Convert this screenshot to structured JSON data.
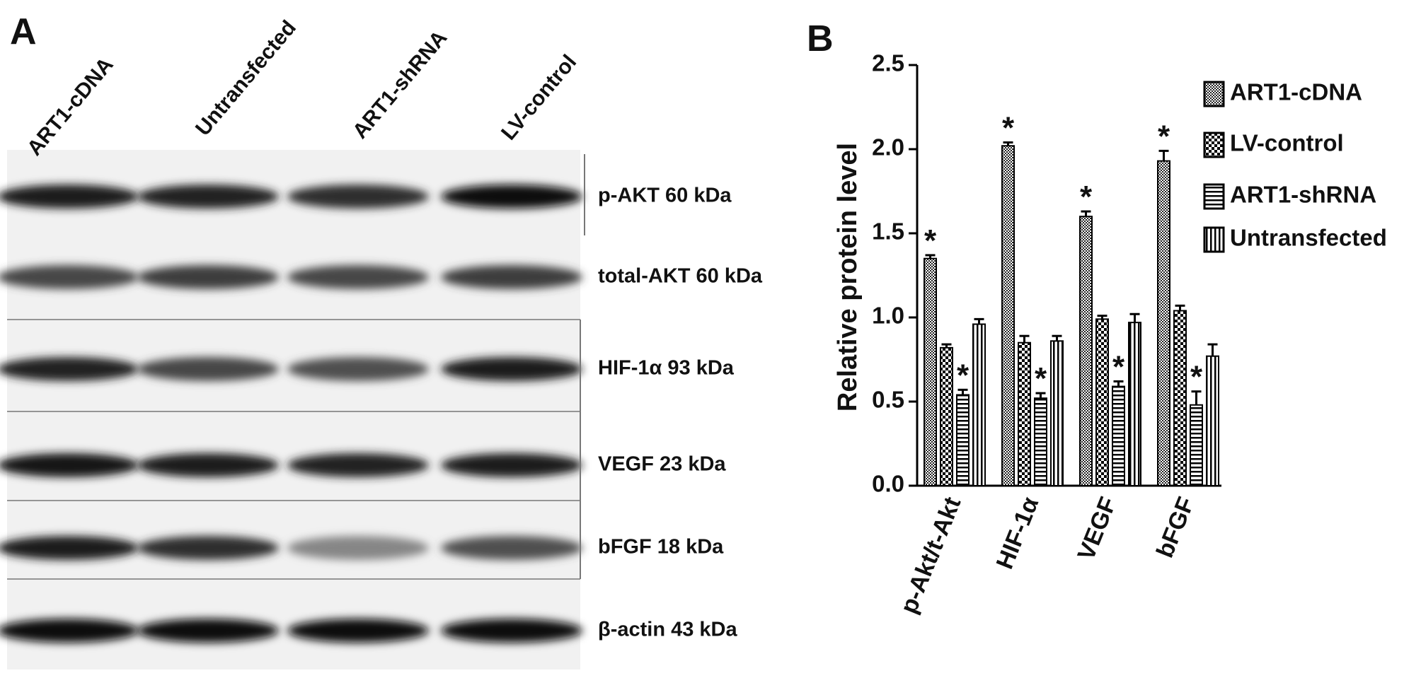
{
  "panel_a": {
    "label": "A",
    "lanes": [
      "ART1-cDNA",
      "Untransfected",
      "ART1-shRNA",
      "LV-control"
    ],
    "bands": [
      "p-AKT 60 kDa",
      "total-AKT 60 kDa",
      "HIF-1α  93 kDa",
      "VEGF 23 kDa",
      "bFGF 18 kDa",
      "β-actin 43 kDa"
    ]
  },
  "chart_data": {
    "type": "bar",
    "panel_label": "B",
    "y_label": "Relative protein level",
    "categories": [
      "p-Akt/t-Akt",
      "HIF-1α",
      "VEGF",
      "bFGF"
    ],
    "series": [
      {
        "name": "ART1-cDNA",
        "color": "#000000",
        "pattern": "fine-checker",
        "values": [
          1.35,
          2.02,
          1.6,
          1.93
        ],
        "errors": [
          0.02,
          0.02,
          0.03,
          0.06
        ]
      },
      {
        "name": "LV-control",
        "color": "#000000",
        "pattern": "checker",
        "values": [
          0.82,
          0.85,
          0.99,
          1.04
        ],
        "errors": [
          0.02,
          0.04,
          0.02,
          0.03
        ]
      },
      {
        "name": "ART1-shRNA",
        "color": "#000000",
        "pattern": "hlines",
        "values": [
          0.54,
          0.52,
          0.59,
          0.48
        ],
        "errors": [
          0.03,
          0.03,
          0.03,
          0.08
        ]
      },
      {
        "name": "Untransfected",
        "color": "#000000",
        "pattern": "vlines",
        "values": [
          0.96,
          0.86,
          0.97,
          0.77
        ],
        "errors": [
          0.03,
          0.03,
          0.05,
          0.07
        ]
      }
    ],
    "annotations": [
      {
        "text": "*",
        "series": 0,
        "category": 0
      },
      {
        "text": "*",
        "series": 2,
        "category": 0
      },
      {
        "text": "*",
        "series": 0,
        "category": 1
      },
      {
        "text": "*",
        "series": 2,
        "category": 1
      },
      {
        "text": "*",
        "series": 0,
        "category": 2
      },
      {
        "text": "*",
        "series": 2,
        "category": 2
      },
      {
        "text": "*",
        "series": 0,
        "category": 3
      },
      {
        "text": "*",
        "series": 2,
        "category": 3
      }
    ],
    "ylim": [
      0,
      2.5
    ],
    "yticks": [
      {
        "value": 0,
        "label": "0.0"
      },
      0.5,
      {
        "value": 1,
        "label": "1.0"
      },
      1.5,
      {
        "value": 2,
        "label": "2.0"
      },
      2.5
    ],
    "grid": false,
    "legend": "right"
  }
}
